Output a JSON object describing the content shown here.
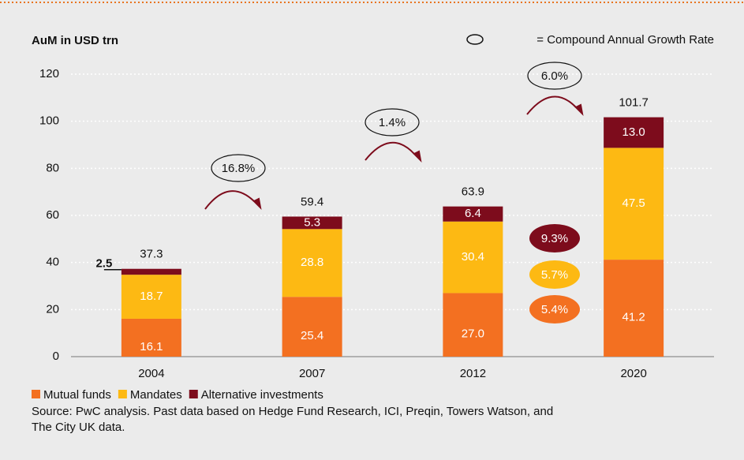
{
  "chart_data": {
    "type": "stacked_bar",
    "y_axis_title": "AuM in USD trn",
    "note": "= Compound Annual Growth Rate",
    "categories": [
      "2004",
      "2007",
      "2012",
      "2020"
    ],
    "series": [
      {
        "name": "Mutual funds",
        "color": "#f37021",
        "values": [
          16.1,
          25.4,
          27.0,
          41.2
        ],
        "value_labels": [
          "16.1",
          "25.4",
          "27.0",
          "41.2"
        ]
      },
      {
        "name": "Mandates",
        "color": "#fdb913",
        "values": [
          18.7,
          28.8,
          30.4,
          47.5
        ],
        "value_labels": [
          "18.7",
          "28.8",
          "30.4",
          "47.5"
        ]
      },
      {
        "name": "Alternative investments",
        "color": "#7d0c1c",
        "values": [
          2.5,
          5.3,
          6.4,
          13.0
        ],
        "value_labels": [
          "2.5",
          "5.3",
          "6.4",
          "13.0"
        ]
      }
    ],
    "totals": [
      37.3,
      59.4,
      63.9,
      101.7
    ],
    "cagr_labels": [
      "16.8%",
      "1.4%",
      "6.0%"
    ],
    "segment_cagr_labels": [
      "9.3%",
      "5.7%",
      "5.4%"
    ],
    "ylim": [
      0,
      120
    ],
    "yticks": [
      0,
      20,
      40,
      60,
      80,
      100,
      120
    ],
    "grid": true,
    "source": [
      "Source: PwC analysis. Past data based on Hedge Fund Research, ICI, Preqin, Towers Watson, and",
      "The City UK data."
    ]
  }
}
